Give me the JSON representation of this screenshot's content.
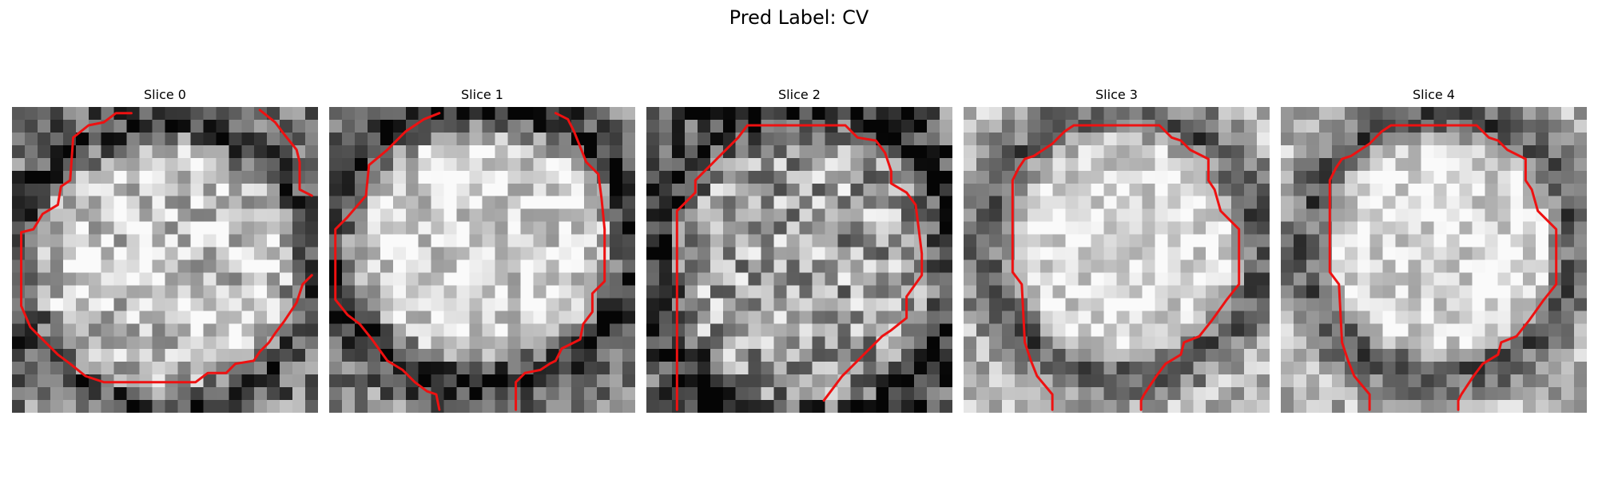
{
  "figure": {
    "title": "Pred Label: CV",
    "panels": [
      {
        "title": "Slice 0"
      },
      {
        "title": "Slice 1"
      },
      {
        "title": "Slice 2"
      },
      {
        "title": "Slice 3"
      },
      {
        "title": "Slice 4"
      }
    ]
  },
  "colors": {
    "contour": "#ee1111",
    "background": "#ffffff"
  }
}
